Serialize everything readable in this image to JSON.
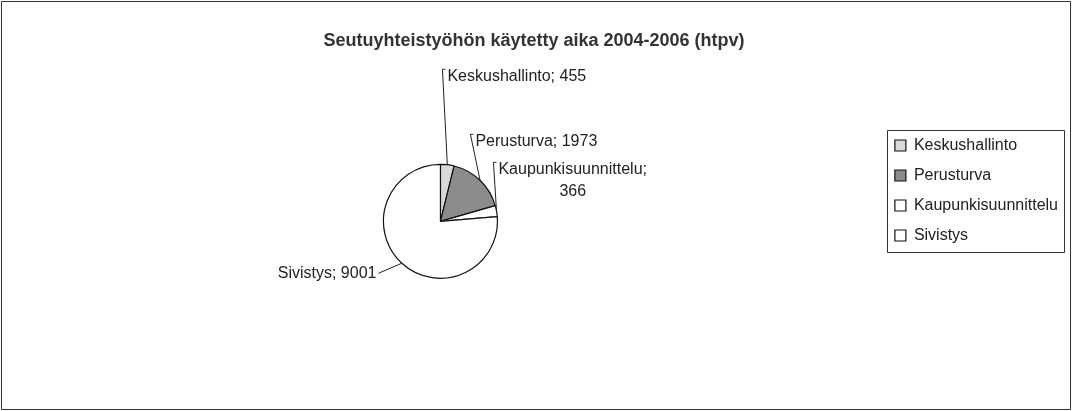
{
  "chart_data": {
    "type": "pie",
    "title": "Seutuyhteistyöhön käytetty aika 2004-2006 (htpv)",
    "categories": [
      "Keskushallinto",
      "Perusturva",
      "Kaupunkisuunnittelu",
      "Sivistys"
    ],
    "values": [
      455,
      1973,
      366,
      9001
    ],
    "colors": [
      "#d9d9d9",
      "#8c8c8c",
      "#ffffff",
      "#ffffff"
    ],
    "value_labels": [
      "Keskushallinto; 455",
      "Perusturva; 1973",
      "Kaupunkisuunnittelu; 366",
      "Sivistys; 9001"
    ],
    "legend": "right"
  }
}
